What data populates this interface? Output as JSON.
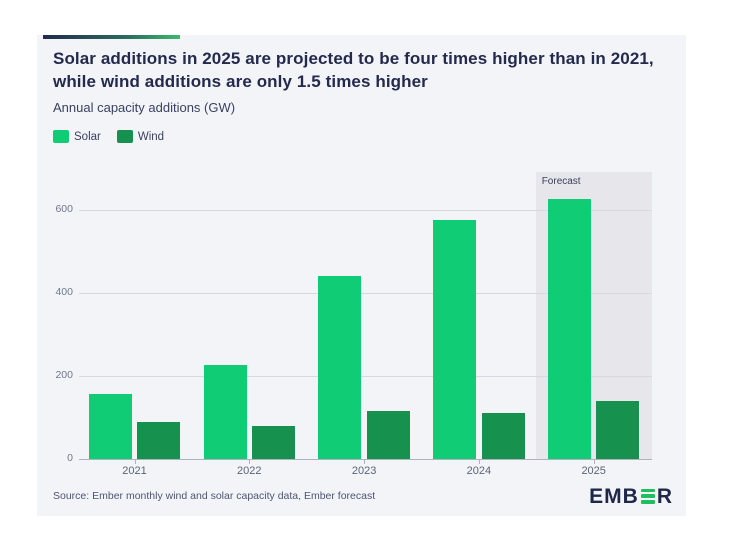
{
  "header": {
    "title": "Solar additions in 2025 are projected to be four times higher than in 2021, while wind additions are only 1.5 times higher",
    "subtitle": "Annual capacity additions (GW)"
  },
  "legend": [
    {
      "label": "Solar",
      "color": "#10cc74"
    },
    {
      "label": "Wind",
      "color": "#17914e"
    }
  ],
  "chart_data": {
    "type": "bar",
    "title": "Solar additions in 2025 are projected to be four times higher than in 2021, while wind additions are only 1.5 times higher",
    "ylabel": "Annual capacity additions (GW)",
    "categories": [
      "2021",
      "2022",
      "2023",
      "2024",
      "2025"
    ],
    "series": [
      {
        "name": "Solar",
        "color": "#10cc74",
        "values": [
          157,
          226,
          440,
          577,
          627
        ]
      },
      {
        "name": "Wind",
        "color": "#17914e",
        "values": [
          90,
          80,
          116,
          112,
          140
        ]
      }
    ],
    "ylim": [
      0,
      680
    ],
    "yticks": [
      0,
      200,
      400,
      600
    ],
    "grid": true,
    "legend_position": "top-left",
    "forecast": {
      "label": "Forecast",
      "category": "2025"
    }
  },
  "footer": {
    "source": "Source: Ember monthly wind and solar capacity data, Ember forecast",
    "logo_pre": "EMB",
    "logo_post": "R"
  },
  "colors": {
    "card_bg": "#f3f4f8",
    "accent_gradient_start": "#222b4e",
    "accent_gradient_end": "#3cb96e",
    "forecast_band": "#e6e6eb",
    "gridline": "#d6d9e2",
    "axis": "#adb2c0",
    "logo_green": "#1fbf5f",
    "title_navy": "#232a4d"
  }
}
